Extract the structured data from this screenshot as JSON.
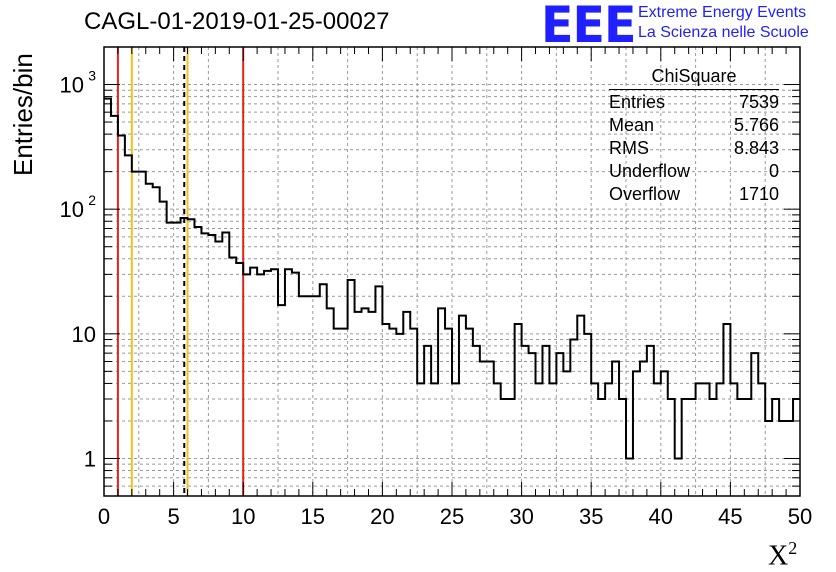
{
  "chart_data": {
    "type": "bar",
    "title": "CAGL-01-2019-01-25-00027",
    "xlabel": "X",
    "xlabel_superscript": "2",
    "ylabel": "Entries/bin",
    "xlim": [
      0,
      50
    ],
    "ylim": [
      0.5,
      2000
    ],
    "yscale": "log",
    "grid": true,
    "bin_width": 0.5,
    "x_ticks": [
      "0",
      "5",
      "10",
      "15",
      "20",
      "25",
      "30",
      "35",
      "40",
      "45",
      "50"
    ],
    "y_ticks": [
      {
        "value": 1,
        "label": "1"
      },
      {
        "value": 10,
        "label": "10"
      },
      {
        "value": 100,
        "label": "10",
        "exp": "2"
      },
      {
        "value": 1000,
        "label": "10",
        "exp": "3"
      }
    ],
    "values": [
      770,
      560,
      390,
      270,
      200,
      200,
      160,
      150,
      115,
      78,
      78,
      85,
      83,
      72,
      64,
      62,
      55,
      65,
      41,
      37,
      30,
      34,
      30,
      32,
      33,
      17,
      33,
      31,
      20,
      20,
      20,
      25,
      16,
      11,
      11,
      27,
      15,
      16,
      15,
      24,
      12,
      11,
      10,
      15,
      11,
      4,
      8,
      4,
      16,
      11,
      4,
      14,
      11,
      8,
      6,
      6,
      4,
      3,
      3,
      12,
      8,
      7,
      4,
      8,
      4,
      7,
      5,
      9,
      14,
      10,
      4,
      3,
      4,
      6,
      3,
      1,
      5,
      6,
      8,
      4,
      5,
      3,
      1,
      3,
      3,
      4,
      4,
      3,
      4,
      12,
      4,
      3,
      3,
      7,
      4,
      2,
      3,
      2,
      2,
      3
    ],
    "vertical_lines": [
      {
        "x": 1.0,
        "color": "#e8201c",
        "style": "solid"
      },
      {
        "x": 2.0,
        "color": "#f3c21a",
        "style": "solid"
      },
      {
        "x": 5.766,
        "color": "#000000",
        "style": "dashed"
      },
      {
        "x": 6.0,
        "color": "#f3c21a",
        "style": "solid"
      },
      {
        "x": 10.0,
        "color": "#e8201c",
        "style": "solid"
      }
    ],
    "stats_box": {
      "title": "ChiSquare",
      "rows": [
        {
          "label": "Entries",
          "value": "7539"
        },
        {
          "label": "Mean",
          "value": "5.766"
        },
        {
          "label": "RMS",
          "value": "8.843"
        },
        {
          "label": "Underflow",
          "value": "0"
        },
        {
          "label": "Overflow",
          "value": "1710"
        }
      ]
    }
  },
  "logo": {
    "text": "EEE",
    "line1": "Extreme Energy Events",
    "line2": "La Scienza nelle Scuole",
    "color": "#1f1fff"
  }
}
